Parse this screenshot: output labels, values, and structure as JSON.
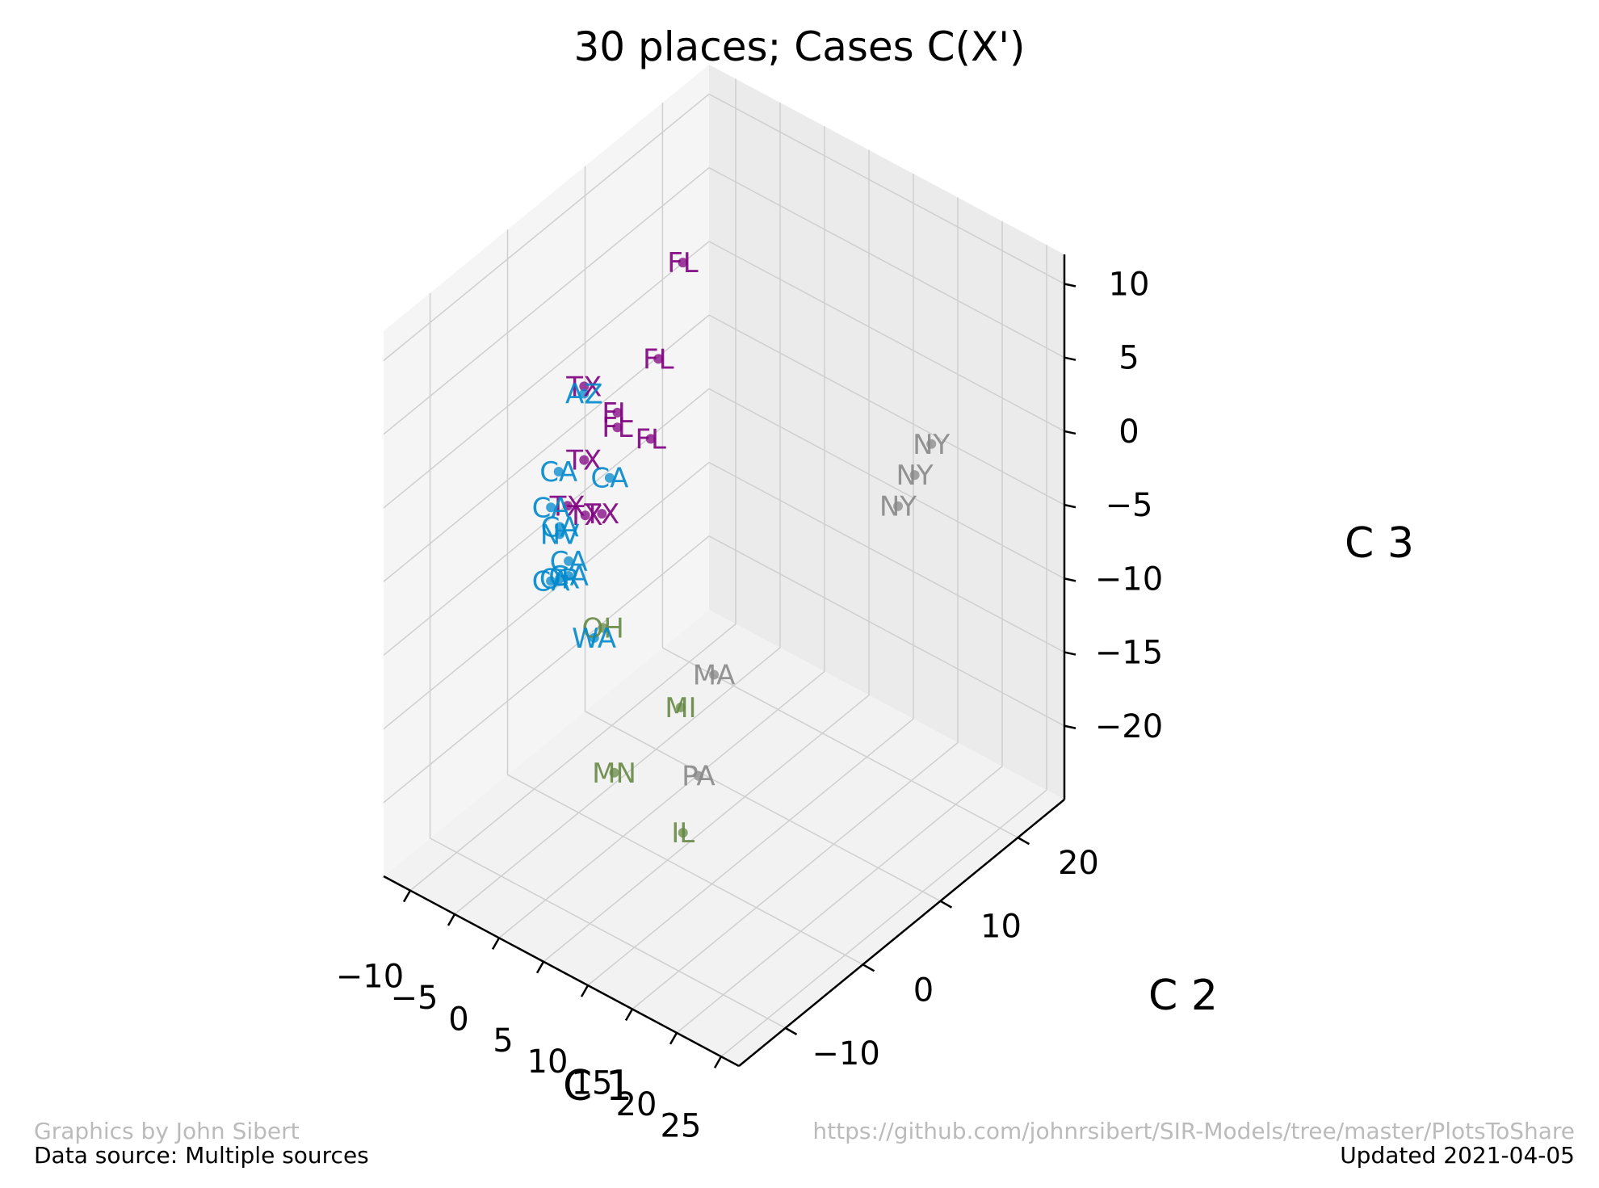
{
  "chart_data": {
    "type": "scatter",
    "projection": "3d",
    "title": "30 places; Cases C(X')",
    "xlabel": "C 1",
    "ylabel": "C 2",
    "zlabel": "C 3",
    "x_ticks": [
      "−10",
      "−5",
      "0",
      "5",
      "10",
      "15",
      "20",
      "25"
    ],
    "y_ticks": [
      "−10",
      "0",
      "10",
      "20"
    ],
    "z_ticks": [
      "10",
      "5",
      "0",
      "−5",
      "−10",
      "−15",
      "−20"
    ],
    "grid": true,
    "colors": {
      "FL": "#800080",
      "TX": "#800080",
      "CA": "#0088cc",
      "AZ": "#0088cc",
      "WA": "#0088cc",
      "NV": "#0088cc",
      "GA": "#0088cc",
      "OR": "#0088cc",
      "NY": "#888888",
      "MA": "#888888",
      "PA": "#888888",
      "OH": "#668844",
      "MI": "#668844",
      "MN": "#668844",
      "IL": "#668844"
    },
    "points": [
      {
        "label": "FL",
        "x": -2,
        "y": 10,
        "z": 9
      },
      {
        "label": "FL",
        "x": -3,
        "y": 8,
        "z": 3
      },
      {
        "label": "FL",
        "x": -5,
        "y": 5,
        "z": 0
      },
      {
        "label": "FL",
        "x": -5,
        "y": 5,
        "z": -1
      },
      {
        "label": "FL",
        "x": -3,
        "y": 7,
        "z": -2
      },
      {
        "label": "TX",
        "x": -7,
        "y": 3,
        "z": 2
      },
      {
        "label": "AZ",
        "x": -7,
        "y": 3,
        "z": 1.5
      },
      {
        "label": "TX",
        "x": -7,
        "y": 3,
        "z": -3
      },
      {
        "label": "TX",
        "x": -8,
        "y": 2,
        "z": -6
      },
      {
        "label": "TX",
        "x": -6,
        "y": 2,
        "z": -6
      },
      {
        "label": "TX",
        "x": -5,
        "y": 3,
        "z": -6
      },
      {
        "label": "CA",
        "x": -9,
        "y": 2,
        "z": -4
      },
      {
        "label": "CA",
        "x": -9,
        "y": 1,
        "z": -6
      },
      {
        "label": "CA",
        "x": -8,
        "y": 1,
        "z": -7
      },
      {
        "label": "CA",
        "x": -5,
        "y": 4,
        "z": -4
      },
      {
        "label": "NV",
        "x": -8,
        "y": 1,
        "z": -7.5
      },
      {
        "label": "CA",
        "x": -7,
        "y": 1,
        "z": -9
      },
      {
        "label": "GA",
        "x": -7,
        "y": 1,
        "z": -10
      },
      {
        "label": "OR",
        "x": -8,
        "y": 1,
        "z": -10.5
      },
      {
        "label": "CA",
        "x": -9,
        "y": 1,
        "z": -11
      },
      {
        "label": "OH",
        "x": -4,
        "y": 2,
        "z": -13
      },
      {
        "label": "WA",
        "x": -5,
        "y": 2,
        "z": -14
      },
      {
        "label": "NY",
        "x": 19,
        "y": 18,
        "z": 0
      },
      {
        "label": "NY",
        "x": 18,
        "y": 17,
        "z": -2
      },
      {
        "label": "NY",
        "x": 17,
        "y": 16,
        "z": -4
      },
      {
        "label": "MA",
        "x": 5,
        "y": 6,
        "z": -15
      },
      {
        "label": "MI",
        "x": 3,
        "y": 4,
        "z": -17
      },
      {
        "label": "MN",
        "x": -1,
        "y": 0,
        "z": -21
      },
      {
        "label": "PA",
        "x": 5,
        "y": 4,
        "z": -21
      },
      {
        "label": "IL",
        "x": 5,
        "y": 2,
        "z": -24
      }
    ]
  },
  "footer": {
    "credit": "Graphics by John Sibert",
    "source": "Data source: Multiple sources",
    "url": "https://github.com/johnrsibert/SIR-Models/tree/master/PlotsToShare",
    "updated": "Updated 2021-04-05"
  }
}
